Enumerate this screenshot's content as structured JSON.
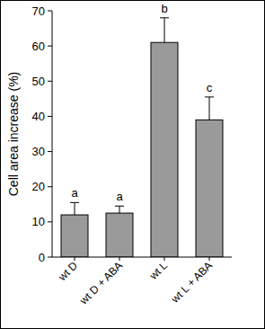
{
  "chart_data": {
    "type": "bar",
    "y_label": "Cell area increase (%)",
    "categories": [
      "wt D",
      "wt D + ABA",
      "wt L",
      "wt L + ABA"
    ],
    "values": [
      12,
      12.5,
      61,
      39
    ],
    "errors": [
      3.5,
      2,
      7,
      6.5
    ],
    "annotations": [
      "a",
      "a",
      "b",
      "c"
    ],
    "color": "#9a9a9a",
    "ylim": [
      0,
      70
    ],
    "yticks": [
      0,
      10,
      20,
      30,
      40,
      50,
      60,
      70
    ],
    "grid": false
  }
}
